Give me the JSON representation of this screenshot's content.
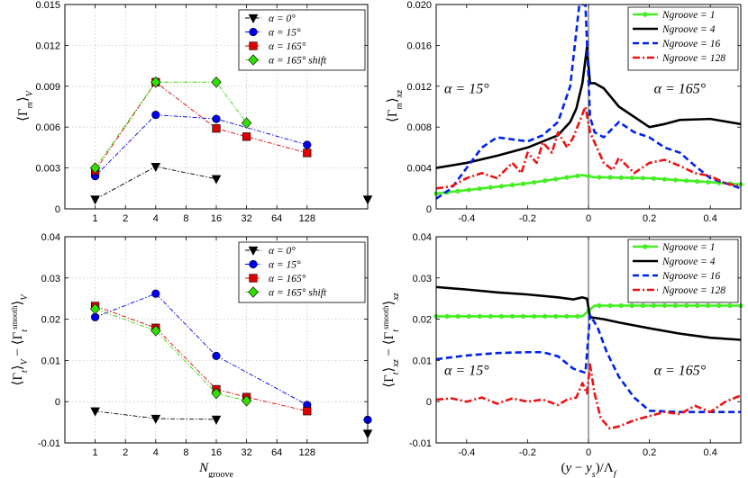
{
  "chart_data": [
    {
      "id": "tl",
      "type": "scatter",
      "xscale": "log2",
      "xlim": [
        0.5,
        512
      ],
      "ylim": [
        0,
        0.015
      ],
      "xticks": [
        1,
        2,
        4,
        8,
        16,
        32,
        64,
        128
      ],
      "xtick_labels": [
        "1",
        "2",
        "4",
        "8",
        "16",
        "32",
        "64",
        "128"
      ],
      "yticks": [
        0,
        0.003,
        0.006,
        0.009,
        0.012,
        0.015
      ],
      "ytick_labels": [
        "0",
        "0.003",
        "0.006",
        "0.009",
        "0.012",
        "0.015"
      ],
      "xlabel": "",
      "ylabel": "⟨Γm⟩V",
      "legend_position": "top-right",
      "series": [
        {
          "name": "α = 0°",
          "marker": "triangle-down",
          "color": "#000000",
          "x": [
            1,
            4,
            16
          ],
          "y": [
            0.0007,
            0.0031,
            0.0022
          ]
        },
        {
          "name": "α = 15°",
          "marker": "circle",
          "color": "#0000ee",
          "x": [
            1,
            4,
            16,
            128
          ],
          "y": [
            0.0024,
            0.0069,
            0.0066,
            0.0047
          ]
        },
        {
          "name": "α = 165°",
          "marker": "square",
          "color": "#dd0000",
          "x": [
            1,
            4,
            16,
            32,
            128
          ],
          "y": [
            0.0028,
            0.0093,
            0.0059,
            0.0053,
            0.0041
          ]
        },
        {
          "name": "α = 165° shift",
          "marker": "diamond",
          "color": "#33dd00",
          "x": [
            1,
            4,
            16,
            32
          ],
          "y": [
            0.003,
            0.0093,
            0.0093,
            0.0063
          ]
        }
      ],
      "extra_points": [
        {
          "x": 512,
          "y": 0.0007,
          "marker": "triangle-down",
          "color": "#000000"
        }
      ]
    },
    {
      "id": "bl",
      "type": "scatter",
      "xscale": "log2",
      "xlim": [
        0.5,
        512
      ],
      "ylim": [
        -0.01,
        0.04
      ],
      "xticks": [
        1,
        2,
        4,
        8,
        16,
        32,
        64,
        128
      ],
      "xtick_labels": [
        "1",
        "2",
        "4",
        "8",
        "16",
        "32",
        "64",
        "128"
      ],
      "yticks": [
        -0.01,
        0,
        0.01,
        0.02,
        0.03,
        0.04
      ],
      "ytick_labels": [
        "-0.01",
        "0",
        "0.01",
        "0.02",
        "0.03",
        "0.04"
      ],
      "xlabel": "Ngroove",
      "ylabel": "⟨Γt⟩V − ⟨Γt smooth⟩V",
      "legend_position": "top-right",
      "series": [
        {
          "name": "α = 0°",
          "marker": "triangle-down",
          "color": "#000000",
          "x": [
            1,
            4,
            16
          ],
          "y": [
            -0.0023,
            -0.0041,
            -0.0043
          ]
        },
        {
          "name": "α = 15°",
          "marker": "circle",
          "color": "#0000ee",
          "x": [
            1,
            4,
            16,
            128
          ],
          "y": [
            0.0205,
            0.0262,
            0.0111,
            -0.0008
          ]
        },
        {
          "name": "α = 165°",
          "marker": "square",
          "color": "#dd0000",
          "x": [
            1,
            4,
            16,
            32,
            128
          ],
          "y": [
            0.0232,
            0.0179,
            0.003,
            0.0011,
            -0.0023
          ]
        },
        {
          "name": "α = 165° shift",
          "marker": "diamond",
          "color": "#33dd00",
          "x": [
            1,
            4,
            16,
            32
          ],
          "y": [
            0.0225,
            0.0172,
            0.002,
            0.0002
          ]
        }
      ],
      "extra_points": [
        {
          "x": 512,
          "y": -0.0044,
          "marker": "circle",
          "color": "#0000ee"
        },
        {
          "x": 512,
          "y": -0.0077,
          "marker": "triangle-down",
          "color": "#000000"
        }
      ]
    },
    {
      "id": "tr",
      "type": "line",
      "xlim": [
        -0.5,
        0.5
      ],
      "ylim": [
        0,
        0.02
      ],
      "xticks": [
        -0.4,
        -0.2,
        0,
        0.2,
        0.4
      ],
      "xtick_labels": [
        "-0.4",
        "-0.2",
        "0",
        "0.2",
        "0.4"
      ],
      "yticks": [
        0,
        0.004,
        0.008,
        0.012,
        0.016,
        0.02
      ],
      "ytick_labels": [
        "0",
        "0.004",
        "0.008",
        "0.012",
        "0.016",
        "0.020"
      ],
      "xlabel": "",
      "ylabel": "⟨Γm⟩xz",
      "legend_position": "top-right",
      "annotations": [
        {
          "text": "α = 15°",
          "x": -0.4,
          "y": 0.0113
        },
        {
          "text": "α = 165°",
          "x": 0.3,
          "y": 0.0113
        }
      ],
      "series": [
        {
          "name": "Ngroove = 1",
          "style": "solid-dots",
          "color": "#44ee22",
          "x": [
            -0.5,
            -0.2,
            -0.02,
            0.02,
            0.2,
            0.5
          ],
          "y": [
            0.0015,
            0.0025,
            0.0033,
            0.0031,
            0.003,
            0.0024
          ]
        },
        {
          "name": "Ngroove = 4",
          "style": "solid",
          "color": "#000000",
          "x": [
            -0.5,
            -0.4,
            -0.3,
            -0.2,
            -0.1,
            -0.06,
            -0.04,
            -0.02,
            -0.005,
            0.005,
            0.02,
            0.05,
            0.1,
            0.2,
            0.25,
            0.3,
            0.4,
            0.5
          ],
          "y": [
            0.004,
            0.0045,
            0.0052,
            0.006,
            0.0072,
            0.0085,
            0.0098,
            0.0123,
            0.0158,
            0.0123,
            0.0123,
            0.0118,
            0.01,
            0.008,
            0.0083,
            0.0087,
            0.0088,
            0.0083
          ]
        },
        {
          "name": "Ngroove = 16",
          "style": "dashed",
          "color": "#0022ee",
          "x": [
            -0.5,
            -0.45,
            -0.4,
            -0.35,
            -0.3,
            -0.25,
            -0.2,
            -0.15,
            -0.1,
            -0.06,
            -0.03,
            -0.01,
            0.005,
            0.02,
            0.05,
            0.1,
            0.15,
            0.2,
            0.25,
            0.3,
            0.35,
            0.4,
            0.5
          ],
          "y": [
            0.001,
            0.002,
            0.004,
            0.006,
            0.007,
            0.0068,
            0.0066,
            0.0072,
            0.0085,
            0.012,
            0.02,
            0.02,
            0.009,
            0.0075,
            0.007,
            0.0085,
            0.0075,
            0.007,
            0.006,
            0.0055,
            0.0042,
            0.003,
            0.002
          ]
        },
        {
          "name": "Ngroove = 128",
          "style": "dash-dot",
          "color": "#ee1111",
          "x": [
            -0.5,
            -0.45,
            -0.4,
            -0.35,
            -0.3,
            -0.25,
            -0.22,
            -0.2,
            -0.17,
            -0.15,
            -0.12,
            -0.1,
            -0.07,
            -0.05,
            -0.03,
            -0.01,
            0.005,
            0.02,
            0.05,
            0.08,
            0.1,
            0.15,
            0.2,
            0.25,
            0.3,
            0.35,
            0.4,
            0.45,
            0.5
          ],
          "y": [
            0.002,
            0.0022,
            0.003,
            0.0035,
            0.003,
            0.0045,
            0.0035,
            0.0055,
            0.0045,
            0.0065,
            0.0055,
            0.0075,
            0.006,
            0.007,
            0.0085,
            0.01,
            0.0075,
            0.0065,
            0.0045,
            0.0038,
            0.005,
            0.0035,
            0.0045,
            0.0048,
            0.0042,
            0.0035,
            0.0032,
            0.0025,
            0.0022
          ]
        }
      ]
    },
    {
      "id": "br",
      "type": "line",
      "xlim": [
        -0.5,
        0.5
      ],
      "ylim": [
        -0.01,
        0.04
      ],
      "xticks": [
        -0.4,
        -0.2,
        0,
        0.2,
        0.4
      ],
      "xtick_labels": [
        "-0.4",
        "-0.2",
        "0",
        "0.2",
        "0.4"
      ],
      "yticks": [
        -0.01,
        0,
        0.01,
        0.02,
        0.03,
        0.04
      ],
      "ytick_labels": [
        "-0.01",
        "0",
        "0.01",
        "0.02",
        "0.03",
        "0.04"
      ],
      "xlabel": "(y − ys)/Λf",
      "ylabel": "⟨Γt⟩xz − ⟨Γt smooth⟩xz",
      "legend_position": "top-right",
      "annotations": [
        {
          "text": "α = 15°",
          "x": -0.4,
          "y": 0.0065
        },
        {
          "text": "α = 165°",
          "x": 0.3,
          "y": 0.0065
        }
      ],
      "series": [
        {
          "name": "Ngroove = 1",
          "style": "solid-dots",
          "color": "#44ee22",
          "x": [
            -0.5,
            -0.2,
            -0.02,
            0.02,
            0.2,
            0.5
          ],
          "y": [
            0.0207,
            0.0207,
            0.0207,
            0.0233,
            0.0233,
            0.0233
          ]
        },
        {
          "name": "Ngroove = 4",
          "style": "solid",
          "color": "#000000",
          "x": [
            -0.5,
            -0.4,
            -0.3,
            -0.2,
            -0.1,
            -0.05,
            -0.02,
            -0.005,
            0.005,
            0.05,
            0.1,
            0.2,
            0.3,
            0.4,
            0.5
          ],
          "y": [
            0.0278,
            0.0272,
            0.0265,
            0.026,
            0.0253,
            0.0248,
            0.0253,
            0.025,
            0.0205,
            0.02,
            0.0192,
            0.0178,
            0.0165,
            0.0155,
            0.015
          ]
        },
        {
          "name": "Ngroove = 16",
          "style": "dashed",
          "color": "#0022ee",
          "x": [
            -0.5,
            -0.4,
            -0.3,
            -0.2,
            -0.15,
            -0.1,
            -0.05,
            -0.01,
            0.005,
            0.03,
            0.06,
            0.1,
            0.15,
            0.2,
            0.3,
            0.4,
            0.5
          ],
          "y": [
            0.0103,
            0.0112,
            0.0118,
            0.012,
            0.012,
            0.011,
            0.008,
            0.007,
            0.021,
            0.018,
            0.012,
            0.006,
            0.001,
            -0.0022,
            -0.0025,
            -0.0025,
            -0.0025
          ]
        },
        {
          "name": "Ngroove = 128",
          "style": "dash-dot",
          "color": "#ee1111",
          "x": [
            -0.5,
            -0.45,
            -0.4,
            -0.35,
            -0.3,
            -0.25,
            -0.2,
            -0.15,
            -0.1,
            -0.07,
            -0.04,
            -0.02,
            -0.005,
            0.005,
            0.02,
            0.04,
            0.07,
            0.1,
            0.15,
            0.2,
            0.25,
            0.3,
            0.35,
            0.4,
            0.45,
            0.5
          ],
          "y": [
            0.0005,
            0.0008,
            0.0,
            0.001,
            -0.0005,
            0.0008,
            0.0,
            0.0005,
            -0.0008,
            0.0005,
            0.001,
            0.0045,
            0.002,
            0.009,
            0.002,
            -0.004,
            -0.0065,
            -0.006,
            -0.0045,
            -0.0035,
            -0.0025,
            -0.003,
            -0.001,
            -0.0025,
            0.0,
            0.0015
          ]
        }
      ]
    }
  ]
}
